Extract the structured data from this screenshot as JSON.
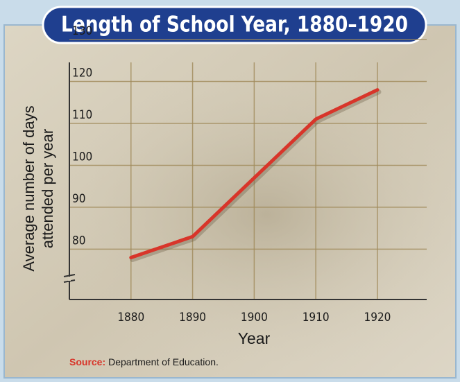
{
  "chart_data": {
    "type": "line",
    "title": "Length of School Year, 1880–1920",
    "y_label": [
      "Average number of days",
      "attended per year"
    ],
    "x_label": "Year",
    "source": {
      "label": "Source:",
      "text": "Department of Education."
    },
    "x": [
      1880,
      1890,
      1900,
      1910,
      1920
    ],
    "values": [
      78,
      83,
      97,
      111,
      118
    ],
    "color": "#d8352a",
    "xlim": [
      1870,
      1928
    ],
    "ylim": [
      68,
      130
    ],
    "xticks": [
      1880,
      1890,
      1900,
      1910,
      1920
    ],
    "yticks": [
      80,
      90,
      100,
      110,
      120,
      130
    ],
    "grid": true
  }
}
